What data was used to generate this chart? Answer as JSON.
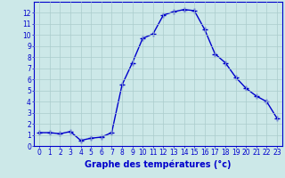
{
  "x": [
    0,
    1,
    2,
    3,
    4,
    5,
    6,
    7,
    8,
    9,
    10,
    11,
    12,
    13,
    14,
    15,
    16,
    17,
    18,
    19,
    20,
    21,
    22,
    23
  ],
  "y": [
    1.2,
    1.2,
    1.1,
    1.3,
    0.5,
    0.7,
    0.8,
    1.2,
    5.5,
    7.5,
    9.7,
    10.1,
    11.8,
    12.1,
    12.3,
    12.2,
    10.5,
    8.3,
    7.5,
    6.2,
    5.2,
    4.5,
    4.0,
    2.5
  ],
  "line_color": "#0000cc",
  "marker": "+",
  "marker_size": 4,
  "linewidth": 1.0,
  "xlabel": "Graphe des températures (°c)",
  "xlabel_fontsize": 7,
  "bg_color": "#cce8e8",
  "grid_color": "#aacccc",
  "axis_color": "#0000cc",
  "tick_color": "#0000cc",
  "xlim": [
    -0.5,
    23.5
  ],
  "ylim": [
    0,
    13
  ],
  "yticks": [
    0,
    1,
    2,
    3,
    4,
    5,
    6,
    7,
    8,
    9,
    10,
    11,
    12
  ],
  "xticks": [
    0,
    1,
    2,
    3,
    4,
    5,
    6,
    7,
    8,
    9,
    10,
    11,
    12,
    13,
    14,
    15,
    16,
    17,
    18,
    19,
    20,
    21,
    22,
    23
  ],
  "tick_fontsize": 5.5
}
